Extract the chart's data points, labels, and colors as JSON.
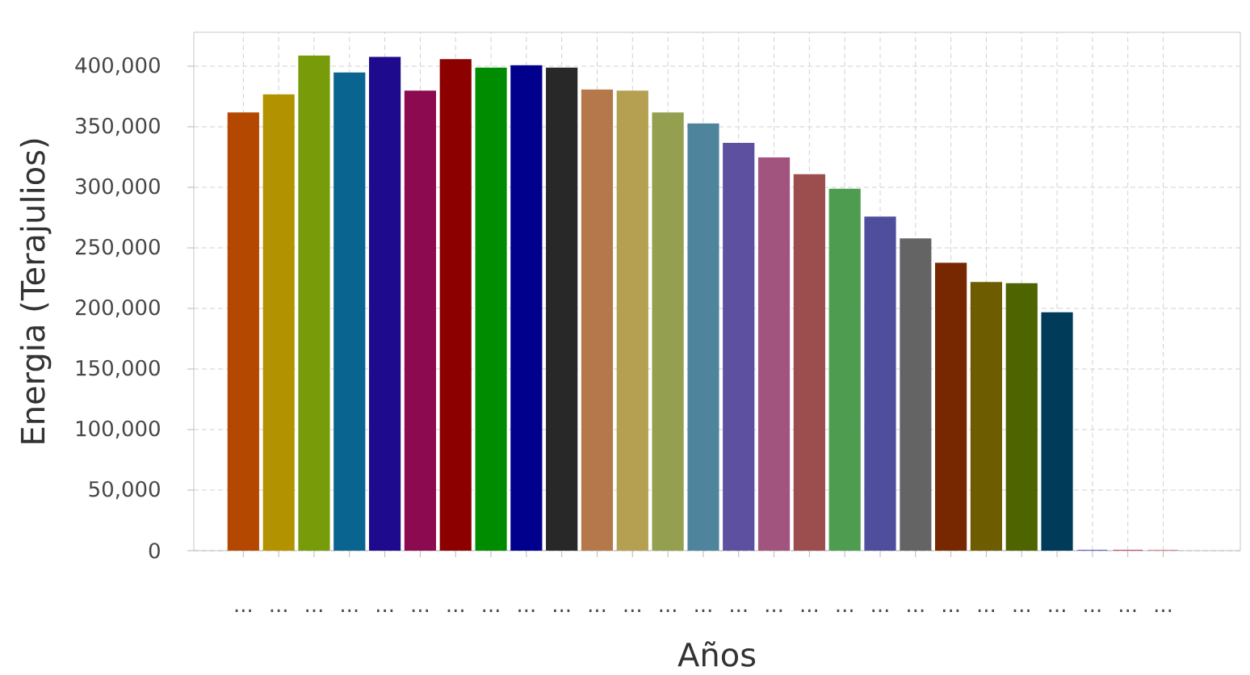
{
  "chart_data": {
    "type": "bar",
    "xlabel": "Años",
    "ylabel": "Energia (Terajulios)",
    "categories": [
      "...",
      "...",
      "...",
      "...",
      "...",
      "...",
      "...",
      "...",
      "...",
      "...",
      "...",
      "...",
      "...",
      "...",
      "...",
      "...",
      "...",
      "...",
      "...",
      "...",
      "...",
      "...",
      "...",
      "...",
      "...",
      "...",
      "..."
    ],
    "values": [
      361000,
      376000,
      408000,
      394000,
      407000,
      379000,
      405000,
      398000,
      400000,
      398000,
      380000,
      379000,
      361000,
      352000,
      336000,
      324000,
      310000,
      298000,
      275000,
      257000,
      237000,
      221000,
      220000,
      196000,
      0,
      0,
      0
    ],
    "colors": [
      "#b54800",
      "#b39200",
      "#789b0a",
      "#0a6490",
      "#1e0a8c",
      "#8c0a50",
      "#8c0000",
      "#008c00",
      "#00008c",
      "#282828",
      "#b4784a",
      "#b4a050",
      "#94a050",
      "#4e849c",
      "#5e50a0",
      "#a0547e",
      "#9c4e4e",
      "#4e9c50",
      "#4e4e9c",
      "#646464",
      "#782800",
      "#6e5c00",
      "#4e6400",
      "#003c5a",
      "#6464d2",
      "#c8506e",
      "#d28c8c"
    ],
    "ylim": [
      0,
      428000
    ],
    "yticks": [
      0,
      {
        "value": 50000,
        "label": "50,000"
      },
      {
        "value": 100000,
        "label": "100,000"
      },
      {
        "value": 150000,
        "label": "150,000"
      },
      {
        "value": 200000,
        "label": "200,000"
      },
      {
        "value": 250000,
        "label": "250,000"
      },
      {
        "value": 300000,
        "label": "300,000"
      },
      {
        "value": 350000,
        "label": "350,000"
      },
      {
        "value": 400000,
        "label": "400,000"
      }
    ],
    "grid": true
  }
}
